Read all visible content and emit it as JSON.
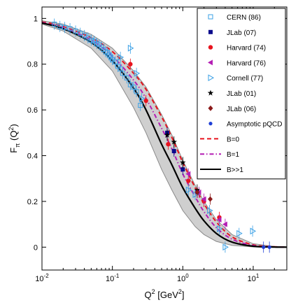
{
  "chart_data": {
    "type": "scatter",
    "title": "",
    "xlabel": "Q2 [GeV2]",
    "ylabel": "Fπ (Q2)",
    "xscale": "log",
    "xlim": [
      0.01,
      30
    ],
    "ylim": [
      -0.1,
      1.05
    ],
    "xtick_labels": [
      "10-2",
      "10-1",
      "100",
      "101"
    ],
    "xticks": [
      0.01,
      0.1,
      1,
      10
    ],
    "yticks": [
      0,
      0.2,
      0.4,
      0.6,
      0.8,
      1
    ],
    "ytick_labels": [
      "0",
      "0.2",
      "0.4",
      "0.6",
      "0.8",
      "1"
    ],
    "grid": false,
    "legend_placement": "top-right",
    "band": {
      "x": [
        0.01,
        0.02,
        0.05,
        0.1,
        0.2,
        0.3,
        0.5,
        0.7,
        1,
        1.5,
        2,
        3,
        5,
        10,
        20,
        30
      ],
      "lower": [
        0.975,
        0.945,
        0.87,
        0.77,
        0.61,
        0.5,
        0.34,
        0.25,
        0.16,
        0.09,
        0.055,
        0.025,
        0.008,
        0.001,
        0,
        0
      ],
      "upper": [
        0.99,
        0.975,
        0.93,
        0.87,
        0.77,
        0.7,
        0.58,
        0.49,
        0.38,
        0.27,
        0.2,
        0.12,
        0.055,
        0.015,
        0.003,
        0.001
      ]
    },
    "curves": [
      {
        "name": "B=0",
        "color": "#e8141e",
        "dash": "6,4",
        "x": [
          0.01,
          0.02,
          0.05,
          0.1,
          0.2,
          0.3,
          0.5,
          0.7,
          1,
          1.5,
          2,
          3,
          5,
          10,
          20,
          30
        ],
        "y": [
          0.985,
          0.965,
          0.915,
          0.855,
          0.76,
          0.69,
          0.57,
          0.48,
          0.37,
          0.26,
          0.19,
          0.11,
          0.045,
          0.01,
          0.002,
          0.0005
        ]
      },
      {
        "name": "B=1",
        "color": "#b41eb4",
        "dash": "6,3,1.5,3",
        "x": [
          0.01,
          0.02,
          0.05,
          0.1,
          0.2,
          0.3,
          0.5,
          0.7,
          1,
          1.5,
          2,
          3,
          5,
          10,
          20,
          30
        ],
        "y": [
          0.982,
          0.96,
          0.905,
          0.835,
          0.73,
          0.65,
          0.52,
          0.43,
          0.32,
          0.22,
          0.155,
          0.085,
          0.035,
          0.007,
          0.001,
          0.0003
        ]
      },
      {
        "name": "B>>1",
        "color": "#000000",
        "dash": "",
        "x": [
          0.01,
          0.02,
          0.05,
          0.1,
          0.2,
          0.3,
          0.5,
          0.7,
          1,
          1.5,
          2,
          3,
          5,
          10,
          20,
          30
        ],
        "y": [
          0.98,
          0.955,
          0.895,
          0.815,
          0.695,
          0.6,
          0.45,
          0.36,
          0.26,
          0.17,
          0.115,
          0.06,
          0.022,
          0.004,
          0.0005,
          0.0001
        ]
      }
    ],
    "series": [
      {
        "name": "CERN (86)",
        "color": "#3aa0e6",
        "marker": "open-square",
        "points": [
          [
            0.015,
            0.975
          ],
          [
            0.018,
            0.965
          ],
          [
            0.021,
            0.96
          ],
          [
            0.025,
            0.955
          ],
          [
            0.03,
            0.945
          ],
          [
            0.035,
            0.935
          ],
          [
            0.04,
            0.925
          ],
          [
            0.045,
            0.915
          ],
          [
            0.05,
            0.905
          ],
          [
            0.055,
            0.9
          ],
          [
            0.06,
            0.89
          ],
          [
            0.065,
            0.885
          ],
          [
            0.07,
            0.875
          ],
          [
            0.075,
            0.865
          ],
          [
            0.08,
            0.855
          ],
          [
            0.085,
            0.85
          ],
          [
            0.09,
            0.84
          ],
          [
            0.095,
            0.83
          ],
          [
            0.1,
            0.82
          ],
          [
            0.11,
            0.81
          ],
          [
            0.12,
            0.79
          ],
          [
            0.13,
            0.78
          ],
          [
            0.14,
            0.76
          ],
          [
            0.16,
            0.74
          ],
          [
            0.18,
            0.71
          ],
          [
            0.2,
            0.7
          ],
          [
            0.22,
            0.68
          ],
          [
            0.25,
            0.62
          ]
        ]
      },
      {
        "name": "JLab (07)",
        "color": "#0a0a8c",
        "marker": "filled-square",
        "points": [
          [
            0.6,
            0.5
          ],
          [
            0.75,
            0.42
          ],
          [
            1.0,
            0.34
          ],
          [
            1.6,
            0.24
          ]
        ]
      },
      {
        "name": "Harvard (74)",
        "color": "#e8141e",
        "marker": "filled-circle",
        "points": [
          [
            0.18,
            0.8
          ],
          [
            0.3,
            0.64
          ],
          [
            0.62,
            0.45
          ],
          [
            1.2,
            0.29
          ],
          [
            2.0,
            0.2
          ],
          [
            3.3,
            0.13
          ]
        ]
      },
      {
        "name": "Harvard (76)",
        "color": "#b41eb4",
        "marker": "left-triangle",
        "points": [
          [
            1.2,
            0.32
          ],
          [
            1.7,
            0.24
          ],
          [
            2.0,
            0.21
          ],
          [
            3.3,
            0.12
          ],
          [
            4.0,
            0.1
          ]
        ]
      },
      {
        "name": "Cornell (77)",
        "color": "#3aa0e6",
        "marker": "right-triangle",
        "points": [
          [
            0.13,
            0.83
          ],
          [
            0.18,
            0.87
          ],
          [
            0.22,
            0.76
          ],
          [
            0.26,
            0.65
          ],
          [
            1.2,
            0.25
          ],
          [
            1.5,
            0.23
          ],
          [
            2.4,
            0.16
          ],
          [
            3.3,
            0.08
          ],
          [
            4.0,
            0.0
          ],
          [
            6.3,
            0.06
          ],
          [
            9.8,
            0.07
          ]
        ]
      },
      {
        "name": "JLab (01)",
        "color": "#000000",
        "marker": "star",
        "points": [
          [
            0.6,
            0.49
          ],
          [
            0.75,
            0.46
          ],
          [
            1.0,
            0.37
          ],
          [
            1.6,
            0.25
          ]
        ]
      },
      {
        "name": "JLab (06)",
        "color": "#8b1a1a",
        "marker": "diamond",
        "points": [
          [
            1.6,
            0.24
          ],
          [
            2.45,
            0.21
          ]
        ]
      },
      {
        "name": "Asymptotic pQCD",
        "color": "#1f3fd6",
        "marker": "filled-circle-small",
        "points": [
          [
            14,
            0.0
          ],
          [
            17,
            0.0
          ]
        ]
      }
    ],
    "legend": [
      {
        "label": "CERN (86)",
        "kind": "marker",
        "marker": "open-square",
        "color": "#3aa0e6"
      },
      {
        "label": "JLab (07)",
        "kind": "marker",
        "marker": "filled-square",
        "color": "#0a0a8c"
      },
      {
        "label": "Harvard (74)",
        "kind": "marker",
        "marker": "filled-circle",
        "color": "#e8141e"
      },
      {
        "label": "Harvard (76)",
        "kind": "marker",
        "marker": "left-triangle",
        "color": "#b41eb4"
      },
      {
        "label": "Cornell (77)",
        "kind": "marker",
        "marker": "right-triangle",
        "color": "#3aa0e6"
      },
      {
        "label": "JLab (01)",
        "kind": "marker",
        "marker": "star",
        "color": "#000000"
      },
      {
        "label": "JLab (06)",
        "kind": "marker",
        "marker": "diamond",
        "color": "#8b1a1a"
      },
      {
        "label": "Asymptotic pQCD",
        "kind": "marker",
        "marker": "filled-circle-small",
        "color": "#1f3fd6"
      },
      {
        "label": "B=0",
        "kind": "line",
        "color": "#e8141e",
        "dash": "6,4"
      },
      {
        "label": "B=1",
        "kind": "line",
        "color": "#b41eb4",
        "dash": "6,3,1.5,3"
      },
      {
        "label": "B>>1",
        "kind": "line",
        "color": "#000000",
        "dash": ""
      }
    ]
  }
}
